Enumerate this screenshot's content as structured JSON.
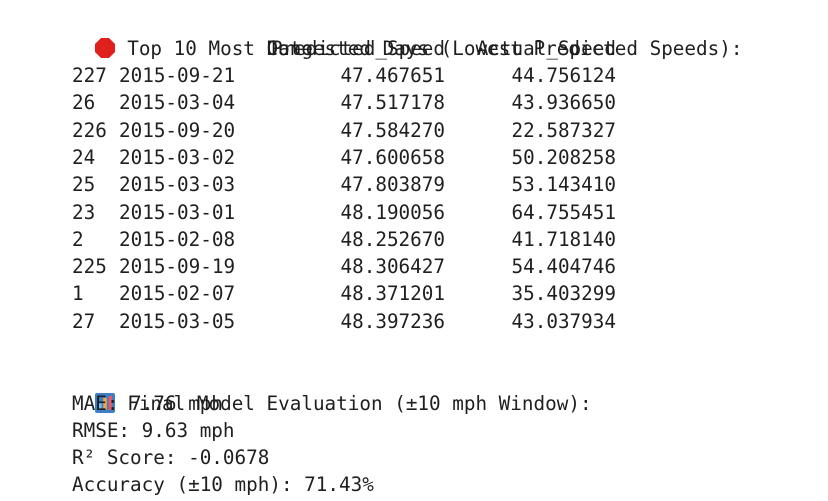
{
  "congested": {
    "icon": "stop-sign-icon",
    "title": "Top 10 Most Congested Days (Lowest Predicted Speeds):",
    "columns": [
      "Date",
      "Predicted_Speed",
      "Actual_Speed"
    ],
    "rows": [
      {
        "index": "227",
        "date": "2015-09-21",
        "predicted": "47.467651",
        "actual": "44.756124"
      },
      {
        "index": "26",
        "date": "2015-03-04",
        "predicted": "47.517178",
        "actual": "43.936650"
      },
      {
        "index": "226",
        "date": "2015-09-20",
        "predicted": "47.584270",
        "actual": "22.587327"
      },
      {
        "index": "24",
        "date": "2015-03-02",
        "predicted": "47.600658",
        "actual": "50.208258"
      },
      {
        "index": "25",
        "date": "2015-03-03",
        "predicted": "47.803879",
        "actual": "53.143410"
      },
      {
        "index": "23",
        "date": "2015-03-01",
        "predicted": "48.190056",
        "actual": "64.755451"
      },
      {
        "index": "2",
        "date": "2015-02-08",
        "predicted": "48.252670",
        "actual": "41.718140"
      },
      {
        "index": "225",
        "date": "2015-09-19",
        "predicted": "48.306427",
        "actual": "54.404746"
      },
      {
        "index": "1",
        "date": "2015-02-07",
        "predicted": "48.371201",
        "actual": "35.403299"
      },
      {
        "index": "27",
        "date": "2015-03-05",
        "predicted": "48.397236",
        "actual": "43.037934"
      }
    ]
  },
  "evaluation": {
    "icon": "bar-chart-icon",
    "title": "Final Model Evaluation (±10 mph Window):",
    "mae": "MAE: 7.76 mph",
    "rmse": "RMSE: 9.63 mph",
    "r2": "R² Score: -0.0678",
    "accuracy": "Accuracy (±10 mph): 71.43%"
  },
  "colors": {
    "stop": "#e0201c",
    "chart_bg": "#3d7fc4",
    "chart_bars": [
      "#6fc0ff",
      "#f4a640",
      "#e85a6b"
    ]
  }
}
